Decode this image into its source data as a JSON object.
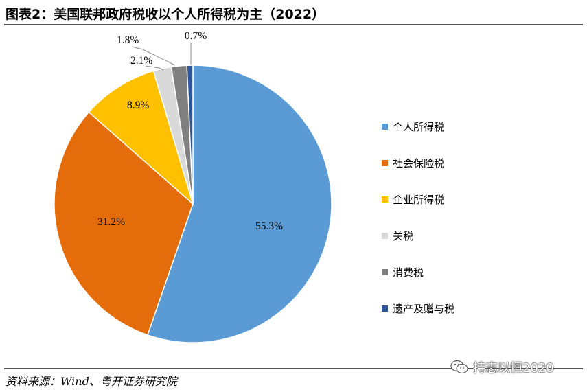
{
  "header": {
    "title": "图表2：美国联邦政府税收以个人所得税为主（2022）"
  },
  "footer": {
    "source": "资料来源：Wind、粤开证券研究院"
  },
  "watermark": {
    "text": "持志以恒2020",
    "icon": "wechat-icon"
  },
  "chart_data": {
    "type": "pie",
    "title": "",
    "legend_position": "right",
    "slices": [
      {
        "name": "个人所得税",
        "value": 55.3,
        "label": "55.3%",
        "color": "#5b9bd5"
      },
      {
        "name": "社会保险税",
        "value": 31.2,
        "label": "31.2%",
        "color": "#e46c0a"
      },
      {
        "name": "企业所得税",
        "value": 8.9,
        "label": "8.9%",
        "color": "#ffc000"
      },
      {
        "name": "关税",
        "value": 2.1,
        "label": "2.1%",
        "color": "#d9d9d9"
      },
      {
        "name": "消费税",
        "value": 1.8,
        "label": "1.8%",
        "color": "#808080"
      },
      {
        "name": "遗产及赠与税",
        "value": 0.7,
        "label": "0.7%",
        "color": "#2e5597"
      }
    ]
  }
}
